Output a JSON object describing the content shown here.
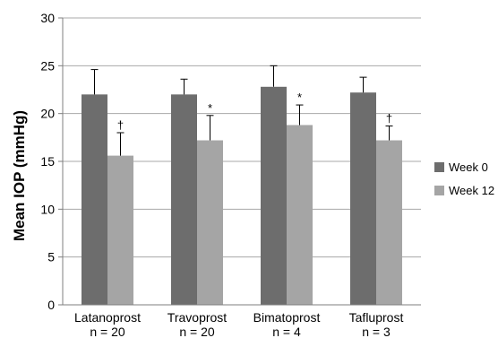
{
  "chart_data": {
    "type": "bar",
    "ylabel": "Mean IOP (mmHg)",
    "ylim": [
      0,
      30
    ],
    "yticks": [
      0,
      5,
      10,
      15,
      20,
      25,
      30
    ],
    "grid": true,
    "legend_position": "right",
    "categories": [
      {
        "name": "Latanoprost",
        "n": "n = 20"
      },
      {
        "name": "Travoprost",
        "n": "n = 20"
      },
      {
        "name": "Bimatoprost",
        "n": "n = 4"
      },
      {
        "name": "Tafluprost",
        "n": "n = 3"
      }
    ],
    "series": [
      {
        "name": "Week 0",
        "color": "#6d6d6d",
        "values": [
          22.0,
          22.0,
          22.8,
          22.2
        ],
        "errors": [
          2.6,
          1.6,
          2.2,
          1.6
        ],
        "annotations": [
          "",
          "",
          "",
          ""
        ]
      },
      {
        "name": "Week 12",
        "color": "#a5a5a5",
        "values": [
          15.6,
          17.2,
          18.8,
          17.2
        ],
        "errors": [
          2.4,
          2.6,
          2.1,
          1.5
        ],
        "annotations": [
          "†",
          "*",
          "*",
          "†"
        ]
      }
    ]
  }
}
